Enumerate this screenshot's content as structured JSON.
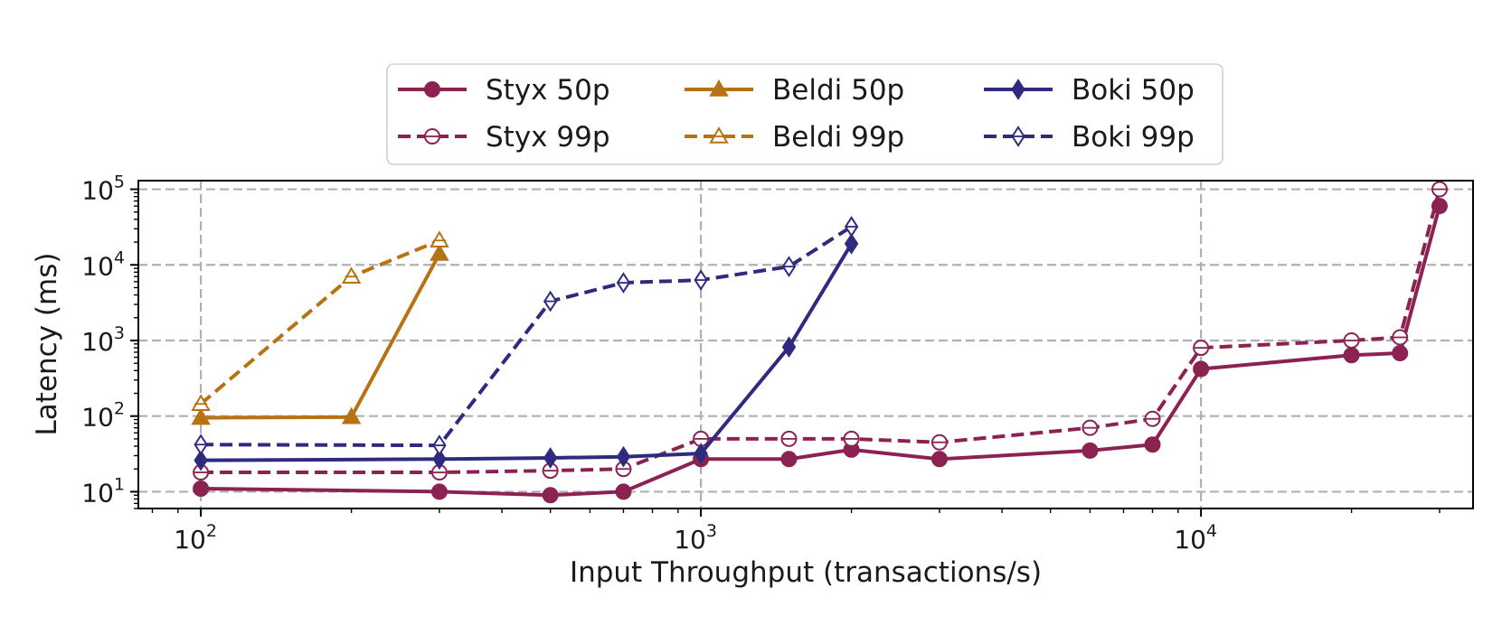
{
  "chart_data": {
    "type": "line",
    "xlabel": "Input Throughput (transactions/s)",
    "ylabel": "Latency (ms)",
    "x_scale": "log",
    "y_scale": "log",
    "xlim": [
      75,
      35000
    ],
    "ylim": [
      6,
      130000
    ],
    "x_ticks": [
      {
        "value": 100,
        "base": "10",
        "exp": "2"
      },
      {
        "value": 1000,
        "base": "10",
        "exp": "3"
      },
      {
        "value": 10000,
        "base": "10",
        "exp": "4"
      }
    ],
    "y_ticks": [
      {
        "value": 10,
        "base": "10",
        "exp": "1"
      },
      {
        "value": 100,
        "base": "10",
        "exp": "2"
      },
      {
        "value": 1000,
        "base": "10",
        "exp": "3"
      },
      {
        "value": 10000,
        "base": "10",
        "exp": "4"
      },
      {
        "value": 100000,
        "base": "10",
        "exp": "5"
      }
    ],
    "grid": true,
    "legend_position": "top-center",
    "series": [
      {
        "name": "Styx 50p",
        "color": "#8b2252",
        "marker": "circle",
        "filled": true,
        "dashed": false,
        "x": [
          100,
          300,
          500,
          700,
          1000,
          1500,
          2000,
          3000,
          6000,
          8000,
          10000,
          20000,
          25000,
          30000
        ],
        "y": [
          11,
          10,
          9,
          10,
          27,
          27,
          36,
          27,
          35,
          42,
          420,
          640,
          680,
          60000
        ]
      },
      {
        "name": "Styx 99p",
        "color": "#8b2252",
        "marker": "circle",
        "filled": false,
        "dashed": true,
        "x": [
          100,
          300,
          500,
          700,
          1000,
          1500,
          2000,
          3000,
          6000,
          8000,
          10000,
          20000,
          25000,
          30000
        ],
        "y": [
          18,
          18,
          19,
          20,
          50,
          50,
          50,
          45,
          70,
          92,
          800,
          1000,
          1100,
          100000
        ]
      },
      {
        "name": "Beldi 50p",
        "color": "#b87214",
        "marker": "triangle",
        "filled": true,
        "dashed": false,
        "x": [
          100,
          200,
          300
        ],
        "y": [
          95,
          97,
          14000
        ]
      },
      {
        "name": "Beldi 99p",
        "color": "#b87214",
        "marker": "triangle",
        "filled": false,
        "dashed": true,
        "x": [
          100,
          200,
          300
        ],
        "y": [
          145,
          7000,
          21000
        ]
      },
      {
        "name": "Boki 50p",
        "color": "#2e2a80",
        "marker": "diamond",
        "filled": true,
        "dashed": false,
        "x": [
          100,
          300,
          500,
          700,
          1000,
          1500,
          2000
        ],
        "y": [
          26,
          27,
          28,
          29,
          32,
          820,
          19000
        ]
      },
      {
        "name": "Boki 99p",
        "color": "#2e2a80",
        "marker": "diamond",
        "filled": false,
        "dashed": true,
        "x": [
          100,
          300,
          500,
          700,
          1000,
          1500,
          2000
        ],
        "y": [
          42,
          41,
          3300,
          5800,
          6300,
          9500,
          32000
        ]
      }
    ]
  }
}
